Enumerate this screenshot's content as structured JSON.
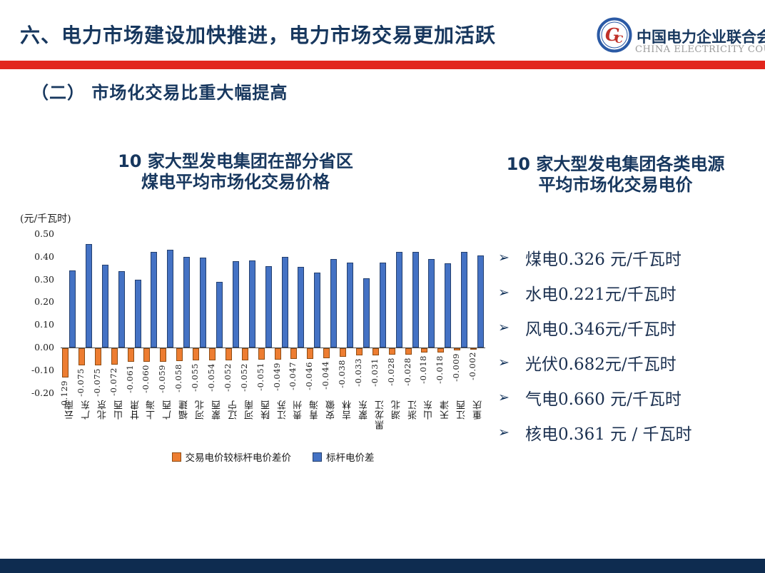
{
  "header": {
    "title": "六、电力市场建设加快推进，电力市场交易更加活跃",
    "logo": {
      "name_cn": "中国电力企业联合会",
      "name_en": "CHINA ELECTRICITY COUNCIL"
    }
  },
  "section": {
    "subtitle": "（二） 市场化交易比重大幅提高"
  },
  "left_chart": {
    "title_line1": "10 家大型发电集团在部分省区",
    "title_line2": "煤电平均市场化交易价格",
    "unit": "(元/千瓦时)"
  },
  "right_panel": {
    "title_line1": "10 家大型发电集团各类电源",
    "title_line2": "平均市场化交易电价",
    "bullet_marker": "➢",
    "bullets": [
      "煤电0.326 元/千瓦时",
      "水电0.221元/千瓦时",
      "风电0.346元/千瓦时",
      "光伏0.682元/千瓦时",
      "气电0.660 元/千瓦时",
      "核电0.361 元 / 千瓦时"
    ]
  },
  "chart_data": {
    "type": "bar",
    "title": "10 家大型发电集团在部分省区煤电平均市场化交易价格",
    "ylabel": "(元/千瓦时)",
    "ylim": [
      -0.2,
      0.5
    ],
    "ytick_step": 0.1,
    "grid": false,
    "legend_position": "bottom",
    "categories": [
      "云南",
      "广东",
      "北京",
      "山西",
      "甘肃",
      "上海",
      "广西",
      "福建",
      "河北",
      "蒙西",
      "辽宁",
      "河南",
      "陕西",
      "江苏",
      "贵州",
      "青海",
      "安徽",
      "吉林",
      "蒙东",
      "黑龙江",
      "湖北",
      "浙江",
      "山东",
      "天津",
      "江西",
      "重庆"
    ],
    "series": [
      {
        "name": "交易电价较标杆电价差价",
        "color": "#ED7D31",
        "data_labels": true,
        "values": [
          -0.129,
          -0.075,
          -0.075,
          -0.072,
          -0.061,
          -0.06,
          -0.059,
          -0.058,
          -0.055,
          -0.054,
          -0.052,
          -0.052,
          -0.051,
          -0.049,
          -0.047,
          -0.046,
          -0.044,
          -0.038,
          -0.033,
          -0.031,
          -0.028,
          -0.028,
          -0.018,
          -0.018,
          -0.009,
          -0.002
        ]
      },
      {
        "name": "标杆电价差",
        "color": "#4472C4",
        "data_labels": false,
        "values": [
          0.34,
          0.455,
          0.365,
          0.335,
          0.3,
          0.42,
          0.43,
          0.4,
          0.395,
          0.29,
          0.38,
          0.385,
          0.36,
          0.4,
          0.355,
          0.33,
          0.39,
          0.375,
          0.305,
          0.375,
          0.42,
          0.42,
          0.39,
          0.37,
          0.42,
          0.405
        ]
      }
    ]
  },
  "colors": {
    "accent_red": "#E2261D",
    "navy_text": "#17375E",
    "footer_navy": "#0E2C50",
    "bar_blue": "#4472C4",
    "bar_orange": "#ED7D31"
  }
}
